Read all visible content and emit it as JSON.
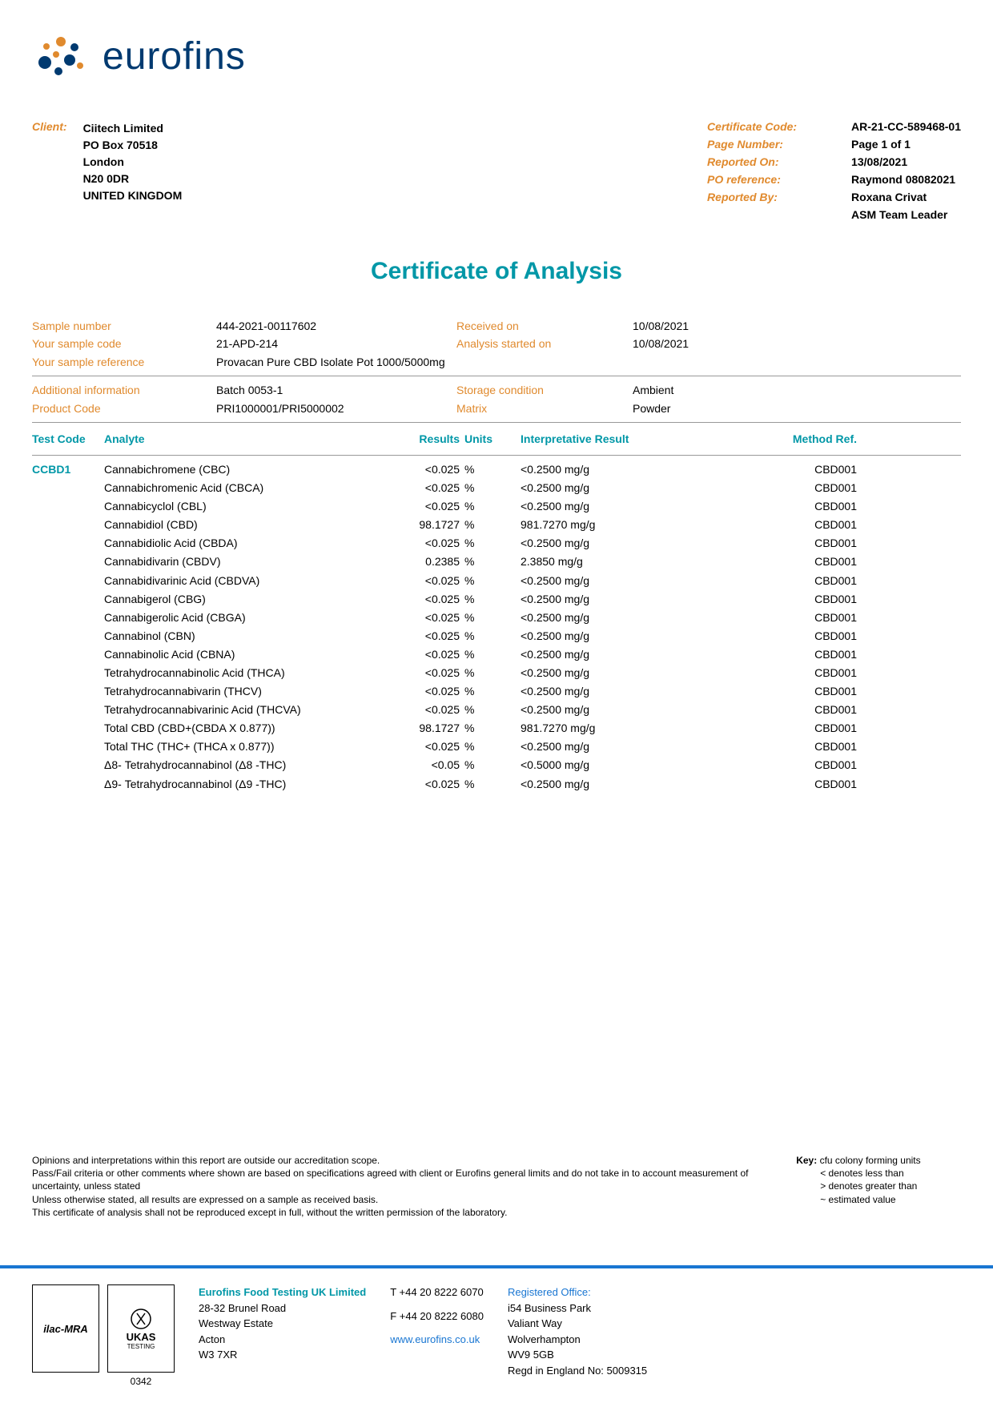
{
  "logo_text": "eurofins",
  "header": {
    "client_label": "Client:",
    "client_lines": [
      "Ciitech Limited",
      "PO Box 70518",
      "London",
      "N20 0DR",
      "UNITED KINGDOM"
    ],
    "cert_meta": [
      {
        "k": "Certificate Code:",
        "v": "AR-21-CC-589468-01"
      },
      {
        "k": "Page Number:",
        "v": "Page 1 of 1"
      },
      {
        "k": "Reported On:",
        "v": "13/08/2021"
      },
      {
        "k": "PO reference:",
        "v": "Raymond 08082021"
      },
      {
        "k": "Reported By:",
        "v": "Roxana Crivat"
      },
      {
        "k": "",
        "v": "ASM Team Leader"
      }
    ]
  },
  "title": "Certificate of Analysis",
  "sample": {
    "rows1": [
      {
        "k": "Sample number",
        "v": "444-2021-00117602",
        "k2": "Received on",
        "v2": "10/08/2021"
      },
      {
        "k": "Your sample code",
        "v": "21-APD-214",
        "k2": "Analysis started on",
        "v2": "10/08/2021"
      },
      {
        "k": "Your sample reference",
        "v": "Provacan Pure CBD Isolate Pot 1000/5000mg",
        "k2": "",
        "v2": ""
      }
    ],
    "rows2": [
      {
        "k": "Additional information",
        "v": "Batch 0053-1",
        "k2": "Storage condition",
        "v2": "Ambient"
      },
      {
        "k": "Product Code",
        "v": "PRI1000001/PRI5000002",
        "k2": "Matrix",
        "v2": "Powder"
      }
    ]
  },
  "table": {
    "headers": {
      "testcode": "Test Code",
      "analyte": "Analyte",
      "results": "Results",
      "units": "Units",
      "interp": "Interpretative Result",
      "method": "Method Ref."
    },
    "testcode": "CCBD1",
    "rows": [
      {
        "analyte": "Cannabichromene (CBC)",
        "r": "<0.025",
        "u": "%",
        "i": "<0.2500 mg/g",
        "m": "CBD001"
      },
      {
        "analyte": "Cannabichromenic Acid (CBCA)",
        "r": "<0.025",
        "u": "%",
        "i": "<0.2500 mg/g",
        "m": "CBD001"
      },
      {
        "analyte": "Cannabicyclol (CBL)",
        "r": "<0.025",
        "u": "%",
        "i": "<0.2500 mg/g",
        "m": "CBD001"
      },
      {
        "analyte": "Cannabidiol (CBD)",
        "r": "98.1727",
        "u": "%",
        "i": "981.7270 mg/g",
        "m": "CBD001"
      },
      {
        "analyte": "Cannabidiolic Acid (CBDA)",
        "r": "<0.025",
        "u": "%",
        "i": "<0.2500 mg/g",
        "m": "CBD001"
      },
      {
        "analyte": "Cannabidivarin (CBDV)",
        "r": "0.2385",
        "u": "%",
        "i": "2.3850 mg/g",
        "m": "CBD001"
      },
      {
        "analyte": "Cannabidivarinic Acid (CBDVA)",
        "r": "<0.025",
        "u": "%",
        "i": "<0.2500 mg/g",
        "m": "CBD001"
      },
      {
        "analyte": "Cannabigerol (CBG)",
        "r": "<0.025",
        "u": "%",
        "i": "<0.2500 mg/g",
        "m": "CBD001"
      },
      {
        "analyte": "Cannabigerolic Acid (CBGA)",
        "r": "<0.025",
        "u": "%",
        "i": "<0.2500 mg/g",
        "m": "CBD001"
      },
      {
        "analyte": "Cannabinol (CBN)",
        "r": "<0.025",
        "u": "%",
        "i": "<0.2500 mg/g",
        "m": "CBD001"
      },
      {
        "analyte": "Cannabinolic Acid (CBNA)",
        "r": "<0.025",
        "u": "%",
        "i": "<0.2500 mg/g",
        "m": "CBD001"
      },
      {
        "analyte": "Tetrahydrocannabinolic Acid (THCA)",
        "r": "<0.025",
        "u": "%",
        "i": "<0.2500 mg/g",
        "m": "CBD001"
      },
      {
        "analyte": "Tetrahydrocannabivarin (THCV)",
        "r": "<0.025",
        "u": "%",
        "i": "<0.2500 mg/g",
        "m": "CBD001"
      },
      {
        "analyte": "Tetrahydrocannabivarinic Acid (THCVA)",
        "r": "<0.025",
        "u": "%",
        "i": "<0.2500 mg/g",
        "m": "CBD001"
      },
      {
        "analyte": "Total CBD (CBD+(CBDA X 0.877))",
        "r": "98.1727",
        "u": "%",
        "i": "981.7270 mg/g",
        "m": "CBD001"
      },
      {
        "analyte": "Total THC (THC+ (THCA x 0.877))",
        "r": "<0.025",
        "u": "%",
        "i": "<0.2500 mg/g",
        "m": "CBD001"
      },
      {
        "analyte": "Δ8- Tetrahydrocannabinol (Δ8 -THC)",
        "r": "<0.05",
        "u": "%",
        "i": "<0.5000 mg/g",
        "m": "CBD001"
      },
      {
        "analyte": "Δ9- Tetrahydrocannabinol (Δ9 -THC)",
        "r": "<0.025",
        "u": "%",
        "i": "<0.2500 mg/g",
        "m": "CBD001"
      }
    ]
  },
  "footer": {
    "notes": [
      "Opinions and interpretations within this report are outside our accreditation scope.",
      "Pass/Fail criteria or other comments where shown are based on specifications agreed with client or Eurofins general limits and do not take in to account measurement of uncertainty, unless stated",
      "Unless otherwise stated, all results are expressed on a sample as received basis.",
      "This certificate of analysis shall not be reproduced except in full, without the written permission of the laboratory."
    ],
    "key_label": "Key:",
    "key_items": [
      "cfu colony forming units",
      "< denotes less than",
      "> denotes greater than",
      "~ estimated value"
    ],
    "ilac": "ilac-MRA",
    "ukas": "UKAS",
    "ukas_sub": "TESTING",
    "ukas_num": "0342",
    "company": {
      "name": "Eurofins Food Testing UK Limited",
      "addr": [
        "28-32 Brunel Road",
        "Westway Estate",
        "Acton",
        "W3 7XR"
      ]
    },
    "contact": {
      "tel": "T  +44 20 8222 6070",
      "fax": "F  +44 20 8222 6080",
      "web": "www.eurofins.co.uk"
    },
    "regoffice": {
      "label": "Registered Office:",
      "addr": [
        "i54 Business Park",
        "Valiant Way",
        "Wolverhampton",
        "WV9 5GB",
        "Regd in England No: 5009315"
      ]
    }
  },
  "colors": {
    "orange": "#e08a2e",
    "teal": "#0097a7",
    "blue": "#1976d2",
    "navy": "#003a70"
  }
}
